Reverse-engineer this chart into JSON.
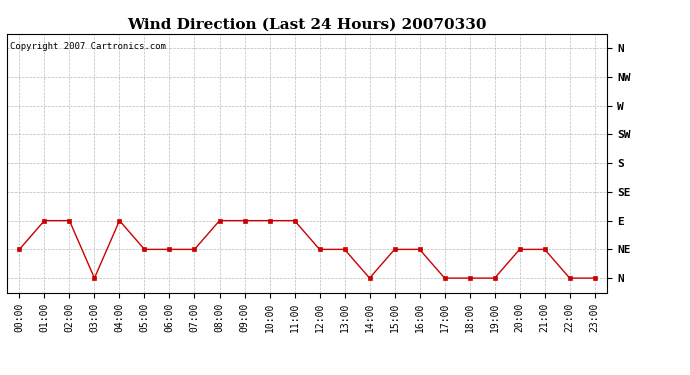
{
  "title": "Wind Direction (Last 24 Hours) 20070330",
  "copyright_text": "Copyright 2007 Cartronics.com",
  "x_labels": [
    "00:00",
    "01:00",
    "02:00",
    "03:00",
    "04:00",
    "05:00",
    "06:00",
    "07:00",
    "08:00",
    "09:00",
    "10:00",
    "11:00",
    "12:00",
    "13:00",
    "14:00",
    "15:00",
    "16:00",
    "17:00",
    "18:00",
    "19:00",
    "20:00",
    "21:00",
    "22:00",
    "23:00"
  ],
  "y_ticks_values": [
    0,
    1,
    2,
    3,
    4,
    5,
    6,
    7,
    8
  ],
  "y_tick_labels": [
    "N",
    "NE",
    "E",
    "SE",
    "S",
    "SW",
    "W",
    "NW",
    "N"
  ],
  "wind_values": [
    1,
    2,
    2,
    0,
    2,
    1,
    1,
    1,
    2,
    2,
    2,
    2,
    1,
    1,
    0,
    1,
    1,
    0,
    0,
    0,
    1,
    1,
    0,
    0
  ],
  "line_color": "#cc0000",
  "marker": "s",
  "marker_size": 2.5,
  "background_color": "#ffffff",
  "grid_color": "#bbbbbb",
  "title_fontsize": 11,
  "copyright_fontsize": 6.5,
  "tick_fontsize": 7,
  "ytick_fontsize": 8
}
